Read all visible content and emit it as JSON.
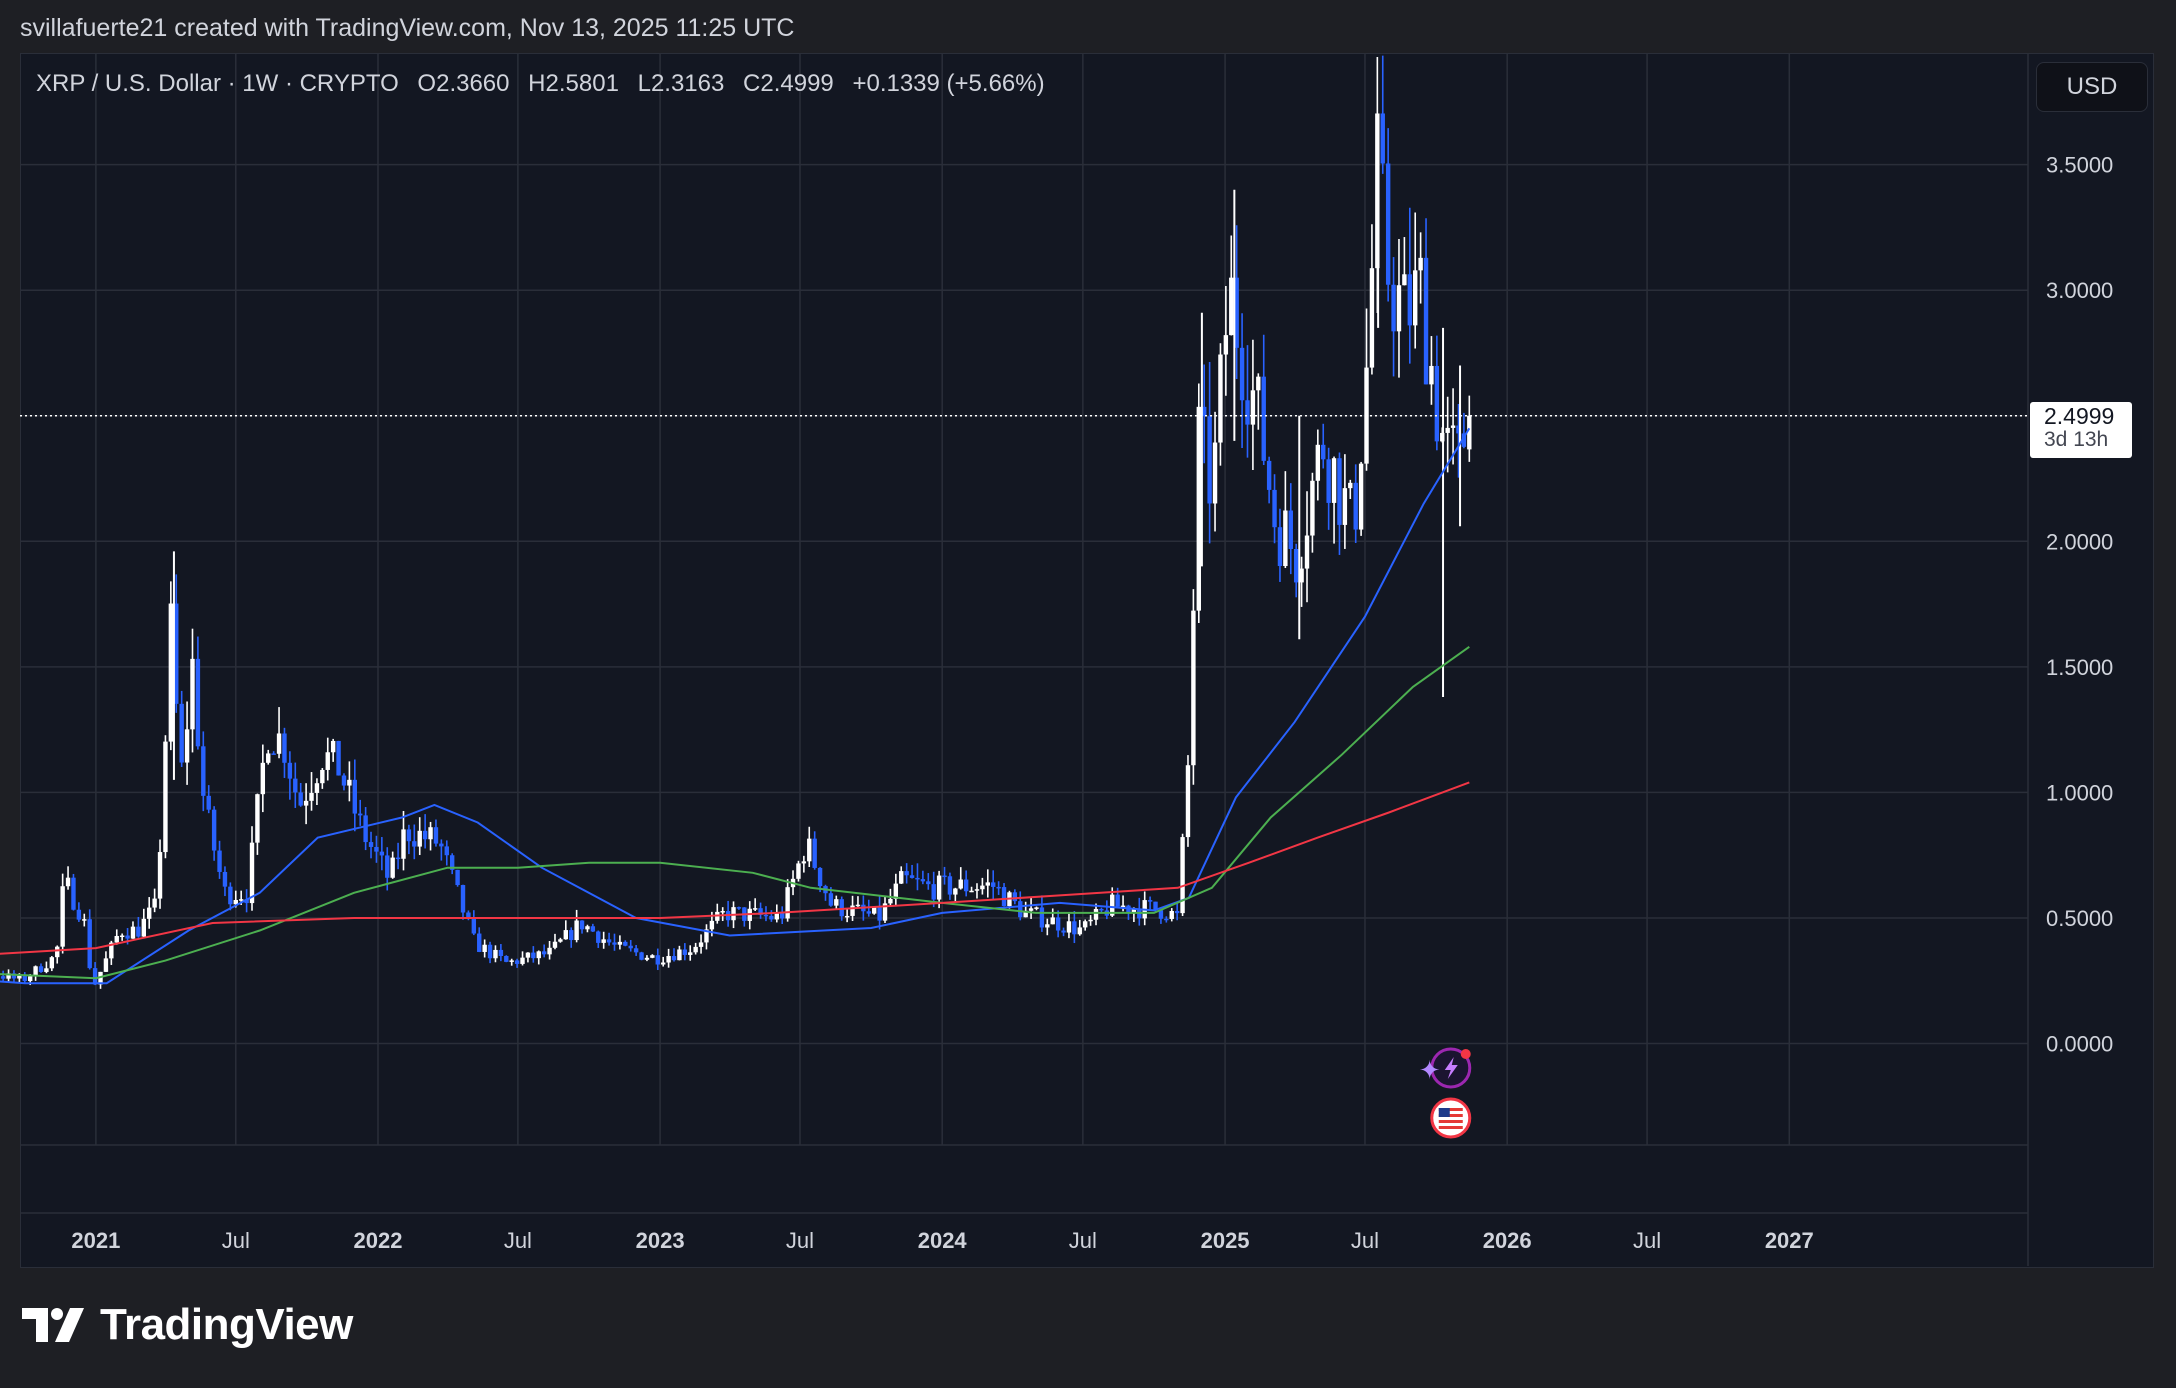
{
  "header": {
    "caption": "svillafuerte21 created with TradingView.com, Nov 13, 2025 11:25 UTC"
  },
  "legend": {
    "symbol": "XRP / U.S. Dollar · 1W · CRYPTO",
    "open": "O2.3660",
    "high": "H2.5801",
    "low": "L2.3163",
    "close": "C2.4999",
    "change": "+0.1339 (+5.66%)"
  },
  "currency_button": "USD",
  "price_tag": {
    "price": "2.4999",
    "countdown": "3d 13h"
  },
  "brand": {
    "name": "TradingView"
  },
  "icons": [
    "lightning-event-icon",
    "us-flag-event-icon",
    "tradingview-logo-icon"
  ],
  "colors": {
    "background": "#131722",
    "grid": "#2a2e39",
    "candle_up": "#ffffff",
    "candle_down": "#2962ff",
    "ma_blue": "#2962ff",
    "ma_green": "#4caf50",
    "ma_red": "#f23645",
    "text": "#d1d4dc"
  },
  "chart_data": {
    "type": "candlestick",
    "title": "XRP / U.S. Dollar · 1W · CRYPTO",
    "ylim": [
      -0.4,
      3.85
    ],
    "y_ticks": [
      0.0,
      0.5,
      1.0,
      1.5,
      2.0,
      2.5,
      3.0,
      3.5
    ],
    "y_tick_labels": [
      "0.0000",
      "0.5000",
      "1.0000",
      "1.5000",
      "2.0000",
      "2.5000",
      "3.0000",
      "3.5000"
    ],
    "x_range": [
      "2020-04-01",
      "2027-05-01"
    ],
    "x_ticks": [
      {
        "date": "2020-07-01",
        "label": "Jul",
        "bold": false
      },
      {
        "date": "2021-01-01",
        "label": "2021",
        "bold": true
      },
      {
        "date": "2021-07-01",
        "label": "Jul",
        "bold": false
      },
      {
        "date": "2022-01-01",
        "label": "2022",
        "bold": true
      },
      {
        "date": "2022-07-01",
        "label": "Jul",
        "bold": false
      },
      {
        "date": "2023-01-01",
        "label": "2023",
        "bold": true
      },
      {
        "date": "2023-07-01",
        "label": "Jul",
        "bold": false
      },
      {
        "date": "2024-01-01",
        "label": "2024",
        "bold": true
      },
      {
        "date": "2024-07-01",
        "label": "Jul",
        "bold": false
      },
      {
        "date": "2025-01-01",
        "label": "2025",
        "bold": true
      },
      {
        "date": "2025-07-01",
        "label": "Jul",
        "bold": false
      },
      {
        "date": "2026-01-01",
        "label": "2026",
        "bold": true
      },
      {
        "date": "2026-07-01",
        "label": "Jul",
        "bold": false
      },
      {
        "date": "2027-01-01",
        "label": "2027",
        "bold": true
      }
    ],
    "last_price": 2.4999,
    "price_path": [
      [
        "2020-04-01",
        0.19
      ],
      [
        "2020-07-01",
        0.19
      ],
      [
        "2020-08-01",
        0.3
      ],
      [
        "2020-10-01",
        0.25
      ],
      [
        "2020-11-15",
        0.35
      ],
      [
        "2020-11-25",
        0.65
      ],
      [
        "2020-12-20",
        0.5
      ],
      [
        "2021-01-01",
        0.22
      ],
      [
        "2021-02-05",
        0.45
      ],
      [
        "2021-02-28",
        0.45
      ],
      [
        "2021-03-25",
        0.55
      ],
      [
        "2021-04-12",
        1.65
      ],
      [
        "2021-04-25",
        1.05
      ],
      [
        "2021-05-10",
        1.5
      ],
      [
        "2021-05-25",
        0.95
      ],
      [
        "2021-06-20",
        0.6
      ],
      [
        "2021-07-20",
        0.6
      ],
      [
        "2021-08-15",
        1.25
      ],
      [
        "2021-09-05",
        1.2
      ],
      [
        "2021-09-25",
        0.95
      ],
      [
        "2021-10-25",
        1.15
      ],
      [
        "2021-11-15",
        1.1
      ],
      [
        "2021-12-15",
        0.85
      ],
      [
        "2022-01-20",
        0.65
      ],
      [
        "2022-02-10",
        0.85
      ],
      [
        "2022-03-25",
        0.8
      ],
      [
        "2022-05-10",
        0.4
      ],
      [
        "2022-06-20",
        0.32
      ],
      [
        "2022-08-15",
        0.36
      ],
      [
        "2022-09-25",
        0.48
      ],
      [
        "2022-11-10",
        0.38
      ],
      [
        "2022-12-31",
        0.34
      ],
      [
        "2023-02-15",
        0.38
      ],
      [
        "2023-03-30",
        0.52
      ],
      [
        "2023-06-10",
        0.5
      ],
      [
        "2023-07-13",
        0.8
      ],
      [
        "2023-08-15",
        0.55
      ],
      [
        "2023-10-15",
        0.5
      ],
      [
        "2023-11-15",
        0.65
      ],
      [
        "2023-12-20",
        0.62
      ],
      [
        "2024-03-10",
        0.63
      ],
      [
        "2024-04-20",
        0.52
      ],
      [
        "2024-07-05",
        0.45
      ],
      [
        "2024-08-10",
        0.55
      ],
      [
        "2024-10-20",
        0.53
      ],
      [
        "2024-11-05",
        0.5
      ],
      [
        "2024-11-18",
        1.1
      ],
      [
        "2024-12-02",
        2.4
      ],
      [
        "2024-12-20",
        2.2
      ],
      [
        "2025-01-10",
        3.0
      ],
      [
        "2025-02-01",
        2.7
      ],
      [
        "2025-02-20",
        2.45
      ],
      [
        "2025-03-10",
        2.1
      ],
      [
        "2025-04-07",
        1.95
      ],
      [
        "2025-05-12",
        2.4
      ],
      [
        "2025-06-20",
        2.05
      ],
      [
        "2025-07-10",
        2.8
      ],
      [
        "2025-07-20",
        3.5
      ],
      [
        "2025-08-05",
        3.05
      ],
      [
        "2025-08-25",
        2.9
      ],
      [
        "2025-09-15",
        3.0
      ],
      [
        "2025-10-10",
        2.45
      ],
      [
        "2025-10-20",
        2.35
      ],
      [
        "2025-11-05",
        2.3
      ],
      [
        "2025-11-13",
        2.4999
      ]
    ],
    "spikes": [
      {
        "date": "2021-04-12",
        "high": 1.96,
        "low": 1.05
      },
      {
        "date": "2024-12-02",
        "high": 2.91,
        "low": 1.9
      },
      {
        "date": "2025-01-13",
        "high": 3.4,
        "low": 2.4
      },
      {
        "date": "2025-04-07",
        "high": 2.5,
        "low": 1.61
      },
      {
        "date": "2025-07-18",
        "high": 3.66,
        "low": 2.85
      },
      {
        "date": "2025-10-10",
        "high": 2.85,
        "low": 1.38
      },
      {
        "date": "2025-11-01",
        "high": 2.7,
        "low": 2.06
      }
    ],
    "series": [
      {
        "type": "moving-average",
        "color": "#2962ff",
        "points": [
          [
            "2020-04-01",
            0.28
          ],
          [
            "2020-10-01",
            0.24
          ],
          [
            "2021-01-15",
            0.24
          ],
          [
            "2021-05-01",
            0.45
          ],
          [
            "2021-08-01",
            0.6
          ],
          [
            "2021-10-15",
            0.82
          ],
          [
            "2022-02-01",
            0.9
          ],
          [
            "2022-03-15",
            0.95
          ],
          [
            "2022-05-10",
            0.88
          ],
          [
            "2022-08-01",
            0.7
          ],
          [
            "2022-12-01",
            0.5
          ],
          [
            "2023-04-01",
            0.43
          ],
          [
            "2023-10-01",
            0.46
          ],
          [
            "2024-01-01",
            0.52
          ],
          [
            "2024-06-01",
            0.56
          ],
          [
            "2024-10-01",
            0.53
          ],
          [
            "2024-11-15",
            0.58
          ],
          [
            "2025-01-15",
            0.98
          ],
          [
            "2025-04-01",
            1.28
          ],
          [
            "2025-07-01",
            1.7
          ],
          [
            "2025-09-15",
            2.15
          ],
          [
            "2025-11-13",
            2.45
          ]
        ]
      },
      {
        "type": "moving-average",
        "color": "#4caf50",
        "points": [
          [
            "2020-04-01",
            0.34
          ],
          [
            "2020-08-01",
            0.28
          ],
          [
            "2021-01-01",
            0.26
          ],
          [
            "2021-04-01",
            0.33
          ],
          [
            "2021-08-01",
            0.45
          ],
          [
            "2021-12-01",
            0.6
          ],
          [
            "2022-04-01",
            0.7
          ],
          [
            "2022-07-01",
            0.7
          ],
          [
            "2022-10-01",
            0.72
          ],
          [
            "2023-01-01",
            0.72
          ],
          [
            "2023-05-01",
            0.68
          ],
          [
            "2023-07-15",
            0.62
          ],
          [
            "2024-01-01",
            0.56
          ],
          [
            "2024-05-01",
            0.52
          ],
          [
            "2024-10-01",
            0.52
          ],
          [
            "2024-12-15",
            0.62
          ],
          [
            "2025-03-01",
            0.9
          ],
          [
            "2025-06-01",
            1.15
          ],
          [
            "2025-09-01",
            1.42
          ],
          [
            "2025-11-13",
            1.58
          ]
        ]
      },
      {
        "type": "moving-average",
        "color": "#f23645",
        "points": [
          [
            "2020-04-01",
            0.33
          ],
          [
            "2021-01-01",
            0.38
          ],
          [
            "2021-06-01",
            0.48
          ],
          [
            "2021-12-01",
            0.5
          ],
          [
            "2022-06-01",
            0.5
          ],
          [
            "2023-01-01",
            0.5
          ],
          [
            "2023-06-01",
            0.52
          ],
          [
            "2024-01-01",
            0.56
          ],
          [
            "2024-06-01",
            0.59
          ],
          [
            "2024-11-01",
            0.62
          ],
          [
            "2025-02-01",
            0.72
          ],
          [
            "2025-05-01",
            0.82
          ],
          [
            "2025-08-01",
            0.92
          ],
          [
            "2025-11-13",
            1.04
          ]
        ]
      }
    ]
  }
}
